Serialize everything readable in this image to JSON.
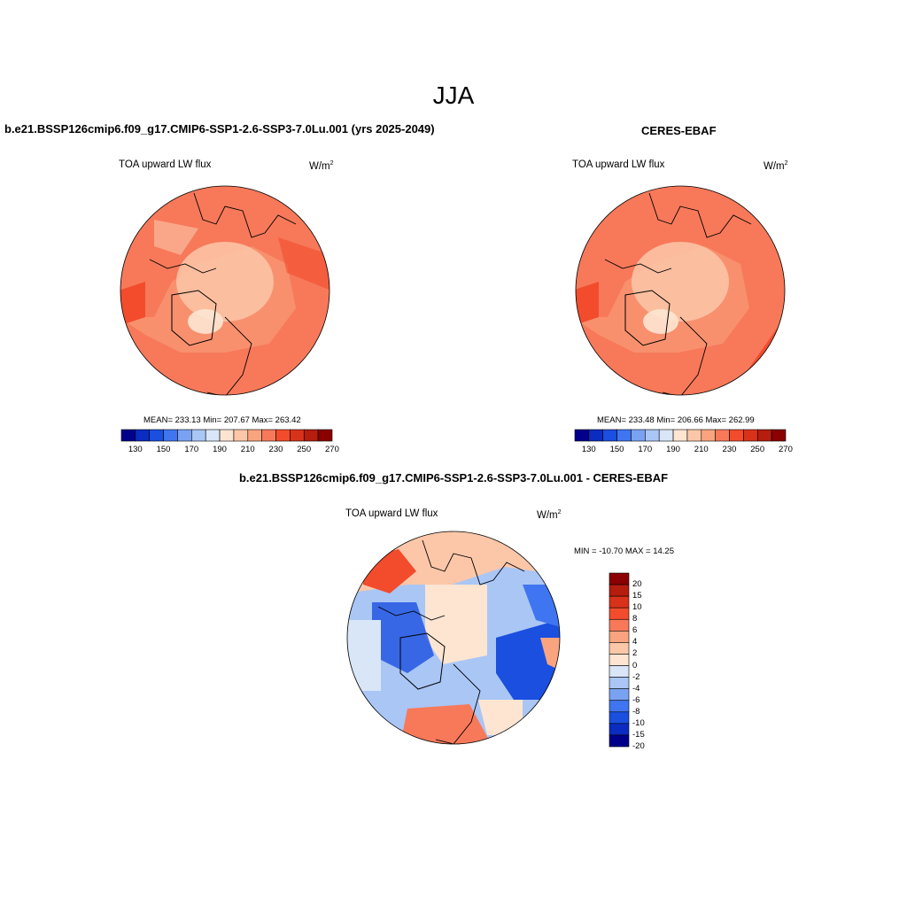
{
  "figure": {
    "season_title": "JJA",
    "panels": [
      {
        "title": "b.e21.BSSP126cmip6.f09_g17.CMIP6-SSP1-2.6-SSP3-7.0Lu.001 (yrs 2025-2049)",
        "variable": "TOA upward LW flux",
        "units_base": "W/m",
        "units_exp": "2",
        "stats": "MEAN= 233.13  Min= 207.67  Max= 263.42",
        "colorbar_labels": [
          "130",
          "150",
          "170",
          "190",
          "210",
          "230",
          "250",
          "270"
        ]
      },
      {
        "title": "CERES-EBAF",
        "variable": "TOA upward LW flux",
        "units_base": "W/m",
        "units_exp": "2",
        "stats": "MEAN= 233.48  Min= 206.66  Max= 262.99",
        "colorbar_labels": [
          "130",
          "150",
          "170",
          "190",
          "210",
          "230",
          "250",
          "270"
        ]
      },
      {
        "title": "b.e21.BSSP126cmip6.f09_g17.CMIP6-SSP1-2.6-SSP3-7.0Lu.001 - CERES-EBAF",
        "variable": "TOA upward LW flux",
        "units_base": "W/m",
        "units_exp": "2",
        "stats": "MIN = -10.70 MAX =  14.25",
        "colorbar_labels": [
          "20",
          "15",
          "10",
          "8",
          "6",
          "4",
          "2",
          "0",
          "-2",
          "-4",
          "-6",
          "-8",
          "-10",
          "-15",
          "-20"
        ]
      }
    ],
    "abs_colors": [
      "#00008b",
      "#0a2cc0",
      "#1a4fe0",
      "#3f75f0",
      "#79a2f2",
      "#a9c6f5",
      "#d8e6f8",
      "#fde5d2",
      "#fcc7a8",
      "#faa47f",
      "#f7795a",
      "#f24c2c",
      "#d9321a",
      "#b51d0e",
      "#8b0000"
    ],
    "diff_colors": [
      "#8b0000",
      "#b51d0e",
      "#d9321a",
      "#f24c2c",
      "#f7795a",
      "#faa47f",
      "#fcc7a8",
      "#fde5d2",
      "#d8e6f8",
      "#a9c6f5",
      "#79a2f2",
      "#3f75f0",
      "#1a4fe0",
      "#0a2cc0",
      "#00008b"
    ]
  }
}
